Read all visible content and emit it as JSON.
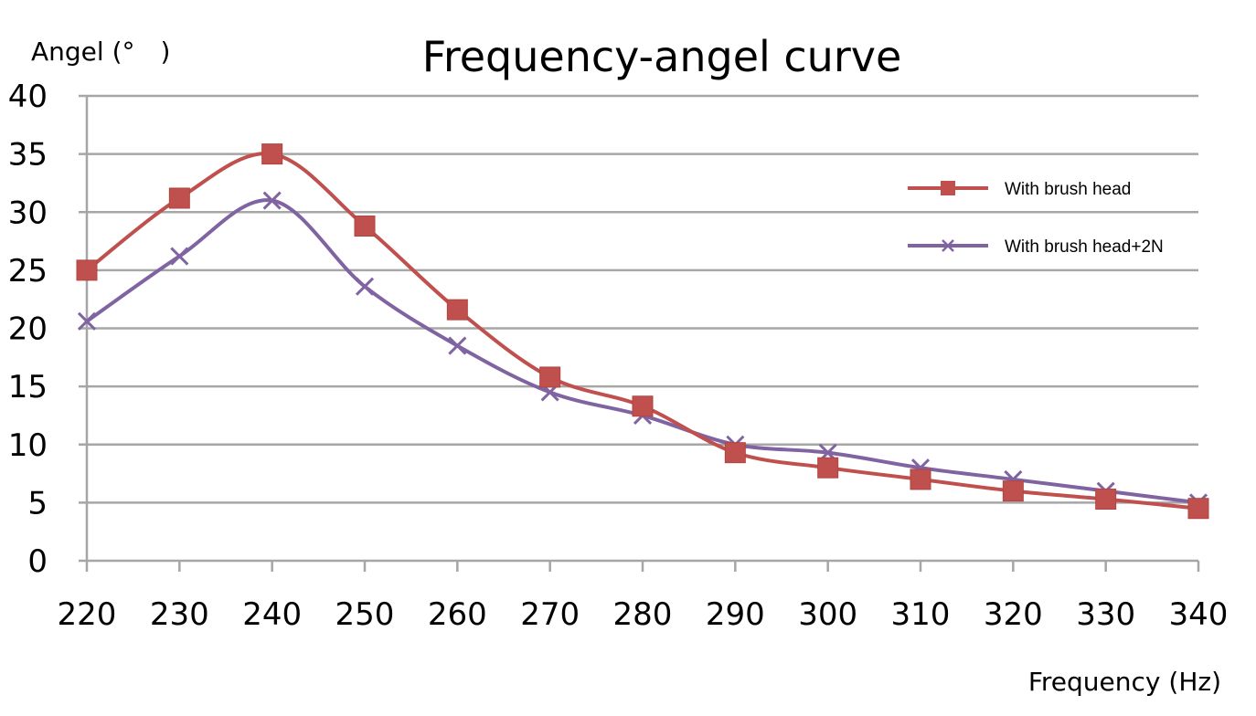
{
  "chart_data": {
    "type": "line",
    "title": "Frequency-angel curve",
    "xlabel": "Frequency (Hz)",
    "ylabel": "Angel (°　)",
    "x": [
      220,
      230,
      240,
      250,
      260,
      270,
      280,
      290,
      300,
      310,
      320,
      330,
      340
    ],
    "xlim": [
      220,
      340
    ],
    "ylim": [
      0,
      40
    ],
    "yticks": [
      0,
      5,
      10,
      15,
      20,
      25,
      30,
      35,
      40
    ],
    "grid": true,
    "legend_position": "right",
    "series": [
      {
        "name": "With brush head",
        "color": "#c0504d",
        "marker": "square",
        "values": [
          25.0,
          31.2,
          35.0,
          28.8,
          21.6,
          15.8,
          13.3,
          9.3,
          8.0,
          7.0,
          6.0,
          5.3,
          4.5
        ]
      },
      {
        "name": "With brush head+2N",
        "color": "#8064a2",
        "marker": "x",
        "values": [
          20.6,
          26.2,
          31.0,
          23.6,
          18.5,
          14.5,
          12.5,
          10.0,
          9.3,
          8.0,
          7.0,
          6.0,
          5.0
        ]
      }
    ]
  }
}
